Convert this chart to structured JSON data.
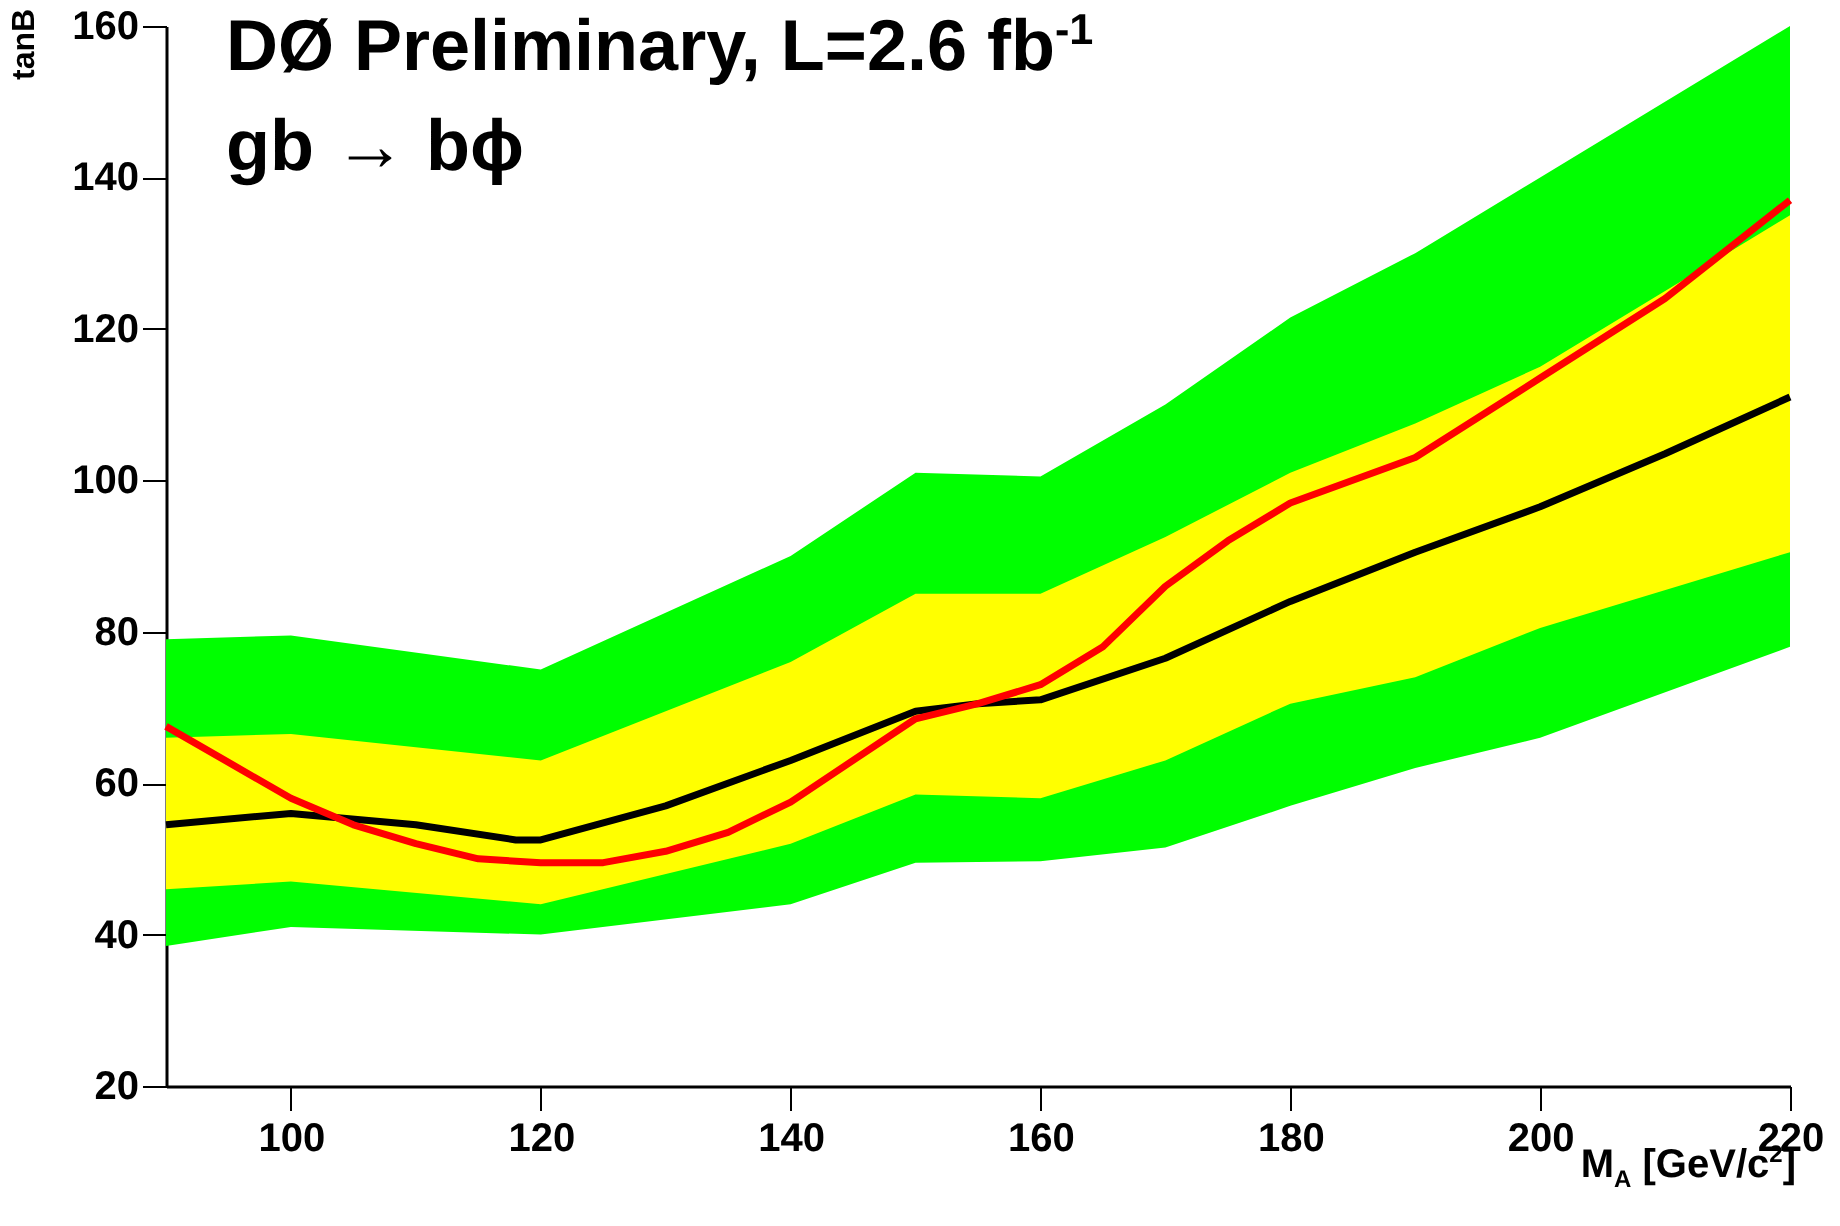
{
  "chart_data": {
    "type": "line",
    "xlabel": "M$_{A}$ [GeV/c$^{2}$]",
    "ylabel": "tanB",
    "annotations": [
      "DØ Preliminary, L=2.6 fb$^{-1}$",
      "gb → bϕ"
    ],
    "x": [
      90,
      100,
      120,
      140,
      150,
      160,
      170,
      180,
      190,
      200,
      220
    ],
    "series": [
      {
        "color": "#00ff00",
        "values": [
          null,
          null,
          null,
          null,
          null,
          null,
          null,
          null,
          null,
          null,
          null
        ],
        "upper": [
          79,
          79.5,
          75,
          90,
          101,
          100.5,
          110,
          121.5,
          130,
          140,
          160
        ],
        "lower": [
          38.5,
          41,
          40,
          44,
          49.5,
          49.7,
          51.5,
          57,
          62,
          66,
          78
        ]
      },
      {
        "color": "#ffff00",
        "values": [
          null,
          null,
          null,
          null,
          null,
          null,
          null,
          null,
          null,
          null,
          null
        ],
        "upper": [
          66,
          66.5,
          63,
          76,
          85,
          85,
          92.5,
          101,
          107.5,
          115,
          135
        ],
        "lower": [
          46,
          47,
          44,
          52,
          58.5,
          58,
          63,
          70.5,
          74,
          80.5,
          90.5
        ]
      },
      {
        "color": "#000000",
        "x": [
          90,
          100,
          110,
          118,
          120,
          130,
          140,
          150,
          155,
          160,
          170,
          180,
          190,
          200,
          210,
          220
        ],
        "values": [
          54.5,
          56,
          54.5,
          52.5,
          52.5,
          57,
          63,
          69.5,
          70.5,
          71,
          76.5,
          84,
          90.5,
          96.5,
          103.5,
          111
        ]
      },
      {
        "color": "#ff0000",
        "x": [
          90,
          100,
          105,
          110,
          115,
          120,
          125,
          130,
          135,
          140,
          145,
          150,
          155,
          160,
          165,
          170,
          175,
          180,
          190,
          200,
          210,
          220
        ],
        "values": [
          67.5,
          58,
          54.5,
          52,
          50,
          49.5,
          49.5,
          51,
          53.5,
          57.5,
          63,
          68.5,
          70.5,
          73,
          78,
          86,
          92,
          97,
          103,
          113.5,
          124,
          137
        ]
      }
    ],
    "xlim": [
      90,
      220
    ],
    "xticks": [
      100,
      120,
      140,
      160,
      180,
      200,
      220
    ],
    "ylim": [
      20,
      160
    ],
    "yticks": [
      20,
      40,
      60,
      80,
      100,
      120,
      140,
      160
    ],
    "grid": false,
    "marker": "none",
    "line_style": "solid"
  }
}
